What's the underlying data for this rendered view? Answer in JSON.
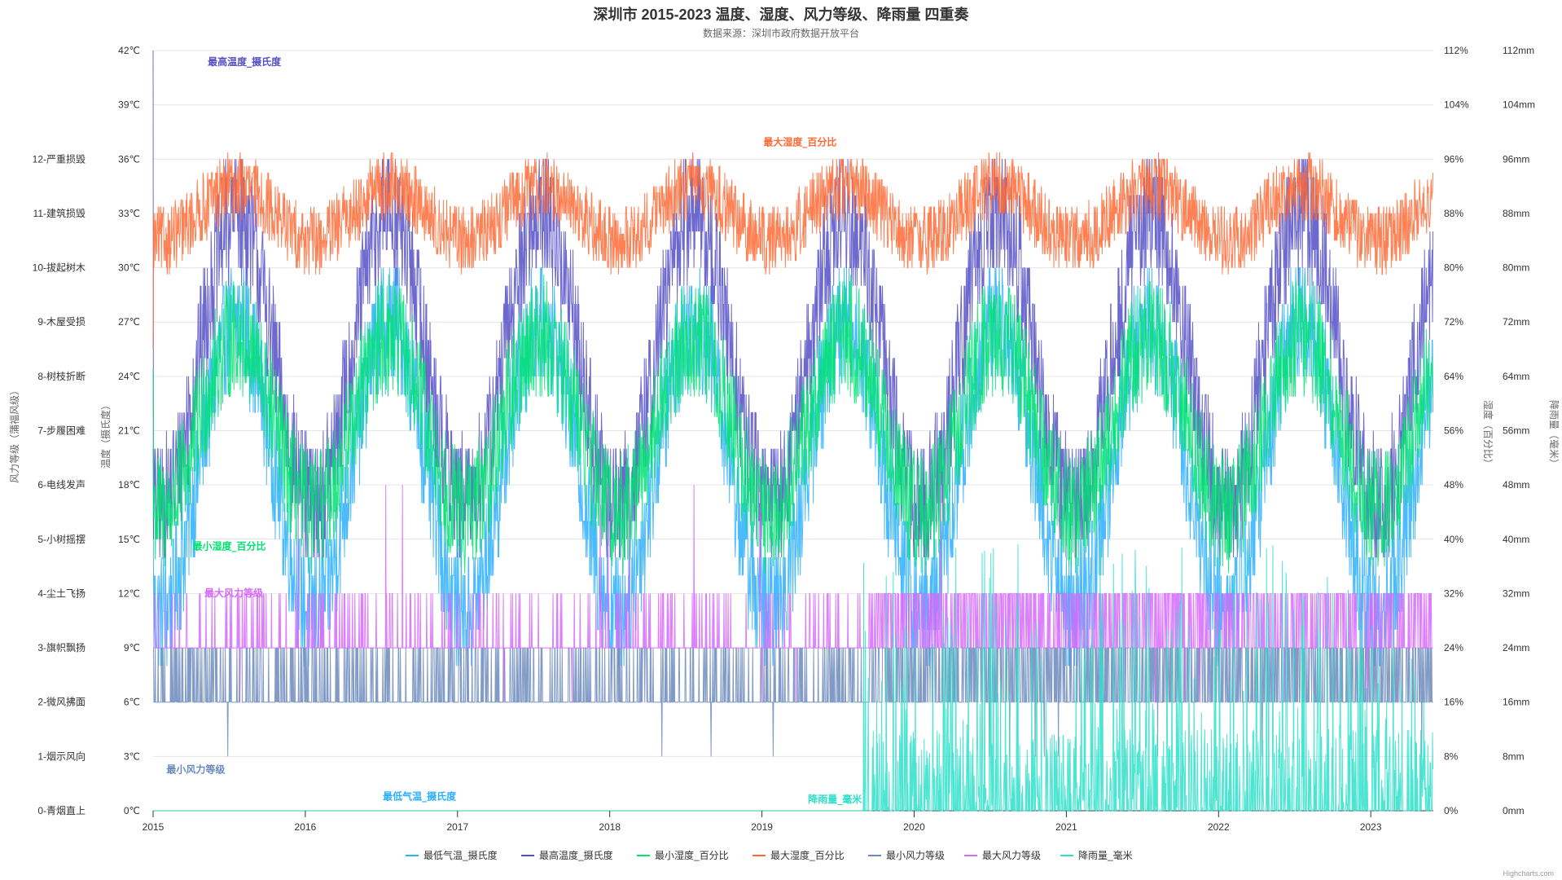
{
  "chart_data": {
    "type": "line",
    "title": "深圳市 2015-2023 温度、湿度、风力等级、降雨量 四重奏",
    "subtitle": "数据来源：深圳市政府数据开放平台",
    "credits": "Highcharts.com",
    "x_axis": {
      "type": "datetime",
      "range": [
        "2015-01-01",
        "2023-05-31"
      ],
      "tick_labels": [
        "2015",
        "2016",
        "2017",
        "2018",
        "2019",
        "2020",
        "2021",
        "2022",
        "2023"
      ]
    },
    "y_axes": [
      {
        "id": "wind",
        "title": "风力等级（蒲福风级）",
        "range": [
          0,
          14
        ],
        "tick_values": [
          0,
          1,
          2,
          3,
          4,
          5,
          6,
          7,
          8,
          9,
          10,
          11,
          12
        ],
        "tick_labels": [
          "0-青烟直上",
          "1-烟示风向",
          "2-微风拂面",
          "3-旗帜飘扬",
          "4-尘土飞扬",
          "5-小树摇摆",
          "6-电线发声",
          "7-步履困难",
          "8-树枝折断",
          "9-木屋受损",
          "10-拔起树木",
          "11-建筑损毁",
          "12-严重损毁"
        ]
      },
      {
        "id": "temp",
        "title": "温度（摄氏度）",
        "range": [
          0,
          42
        ],
        "tick_labels": [
          "0℃",
          "3℃",
          "6℃",
          "9℃",
          "12℃",
          "15℃",
          "18℃",
          "21℃",
          "24℃",
          "27℃",
          "30℃",
          "33℃",
          "36℃",
          "39℃",
          "42℃"
        ]
      },
      {
        "id": "humidity",
        "title": "湿度（百分比）",
        "range": [
          0,
          112
        ],
        "tick_labels": [
          "0%",
          "8%",
          "16%",
          "24%",
          "32%",
          "40%",
          "48%",
          "56%",
          "64%",
          "72%",
          "80%",
          "88%",
          "96%",
          "104%",
          "112%"
        ]
      },
      {
        "id": "rain",
        "title": "降雨量（毫米）",
        "range": [
          0,
          112
        ],
        "tick_labels": [
          "0mm",
          "8mm",
          "16mm",
          "24mm",
          "32mm",
          "40mm",
          "48mm",
          "56mm",
          "64mm",
          "72mm",
          "80mm",
          "88mm",
          "96mm",
          "104mm",
          "112mm"
        ]
      }
    ],
    "series": [
      {
        "name": "最低气温_摄氏度",
        "axis": "temp",
        "color": "#2caffe",
        "label_year": 2016.75,
        "label_value": 0.6,
        "seasonal": {
          "winter": 11,
          "summer": 27,
          "noise": 3.5,
          "min": 1,
          "max": 30
        },
        "first_point": 20
      },
      {
        "name": "最高温度_摄氏度",
        "axis": "temp",
        "color": "#544fc5",
        "label_year": 2015.6,
        "label_value": 41.2,
        "seasonal": {
          "winter": 17,
          "summer": 33,
          "noise": 3.5,
          "min": 5,
          "max": 36
        },
        "first_point": 42
      },
      {
        "name": "最小湿度_百分比",
        "axis": "humidity",
        "color": "#00e272",
        "label_year": 2015.5,
        "label_value": 38.5,
        "seasonal": {
          "winter": 44,
          "summer": 70,
          "noise": 9,
          "min": 14,
          "max": 90
        },
        "first_point": 65
      },
      {
        "name": "最大湿度_百分比",
        "axis": "humidity",
        "color": "#fe6a35",
        "label_year": 2019.25,
        "label_value": 98,
        "seasonal": {
          "winter": 84,
          "summer": 92,
          "noise": 5,
          "min": 64,
          "max": 100
        },
        "first_point": 68
      },
      {
        "name": "最小风力等级",
        "axis": "wind",
        "color": "#6b8abc",
        "label_year": 2015.28,
        "label_value": 0.7,
        "levels": [
          2,
          3
        ],
        "first_point": 2
      },
      {
        "name": "最大风力等级",
        "axis": "wind",
        "color": "#d568fb",
        "label_year": 2015.53,
        "label_value": 3.95,
        "levels": [
          3,
          4
        ],
        "first_point": 3
      },
      {
        "name": "降雨量_毫米",
        "axis": "rain",
        "color": "#2ee0ca",
        "label_year": 2019.48,
        "label_value": 1.2,
        "start": "2019-09-01",
        "max": 40
      }
    ],
    "legend": {
      "position": "bottom-center",
      "items": [
        "最低气温_摄氏度",
        "最高温度_摄氏度",
        "最小湿度_百分比",
        "最大湿度_百分比",
        "最小风力等级",
        "最大风力等级",
        "降雨量_毫米"
      ]
    }
  }
}
